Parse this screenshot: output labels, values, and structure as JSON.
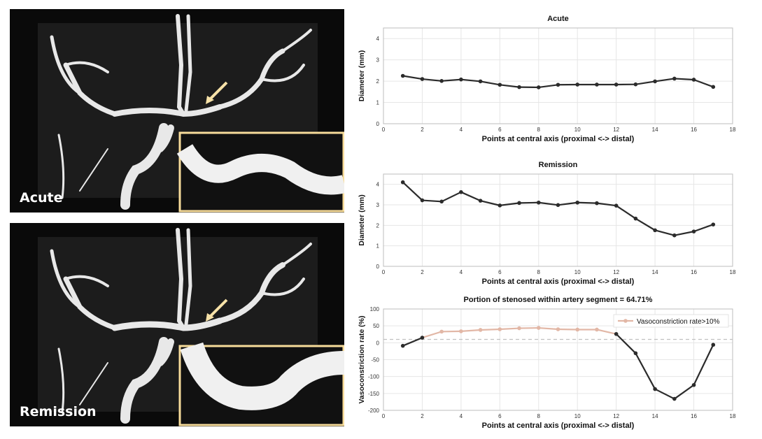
{
  "images": {
    "top": {
      "label": "Acute"
    },
    "bottom": {
      "label": "Remission"
    }
  },
  "colors": {
    "line": "#2b2b2b",
    "highlight": "#e2b7a6",
    "inset_border": "#f7dc9a",
    "arrow": "#f7e2a8",
    "grid": "#e6e6e6",
    "dashed": "#c0c0c0"
  },
  "chart_data": [
    {
      "type": "line",
      "title": "Acute",
      "xlabel": "Points at central axis (proximal <-> distal)",
      "ylabel": "Diameter (mm)",
      "xlim": [
        0,
        18
      ],
      "ylim": [
        0,
        4.5
      ],
      "xticks": [
        0,
        2,
        4,
        6,
        8,
        10,
        12,
        14,
        16,
        18
      ],
      "yticks": [
        0,
        1,
        2,
        3,
        4
      ],
      "grid": true,
      "x": [
        1,
        2,
        3,
        4,
        5,
        6,
        7,
        8,
        9,
        10,
        11,
        12,
        13,
        14,
        15,
        16,
        17
      ],
      "series": [
        {
          "values": [
            2.25,
            2.1,
            2.01,
            2.08,
            1.99,
            1.83,
            1.72,
            1.71,
            1.83,
            1.84,
            1.84,
            1.84,
            1.85,
            1.99,
            2.12,
            2.07,
            1.73
          ]
        }
      ]
    },
    {
      "type": "line",
      "title": "Remission",
      "xlabel": "Points at central axis (proximal <-> distal)",
      "ylabel": "Diameter (mm)",
      "xlim": [
        0,
        18
      ],
      "ylim": [
        0,
        4.5
      ],
      "xticks": [
        0,
        2,
        4,
        6,
        8,
        10,
        12,
        14,
        16,
        18
      ],
      "yticks": [
        0,
        1,
        2,
        3,
        4
      ],
      "grid": true,
      "x": [
        1,
        2,
        3,
        4,
        5,
        6,
        7,
        8,
        9,
        10,
        11,
        12,
        13,
        14,
        15,
        16,
        17
      ],
      "series": [
        {
          "values": [
            4.1,
            3.22,
            3.16,
            3.62,
            3.2,
            2.97,
            3.09,
            3.11,
            2.99,
            3.11,
            3.08,
            2.96,
            2.33,
            1.76,
            1.51,
            1.7,
            2.04
          ]
        }
      ]
    },
    {
      "type": "line",
      "title": "Portion of stenosed within artery segment = 64.71%",
      "xlabel": "Points at central axis (proximal <-> distal)",
      "ylabel": "Vasoconstriction rate (%)",
      "xlim": [
        0,
        18
      ],
      "ylim": [
        -200,
        100
      ],
      "xticks": [
        0,
        2,
        4,
        6,
        8,
        10,
        12,
        14,
        16,
        18
      ],
      "yticks": [
        100,
        50,
        0,
        -50,
        -100,
        -150,
        -200
      ],
      "grid": true,
      "reference_line": 10,
      "legend": {
        "position": "top-right",
        "entries": [
          "Vasoconstriction rate>10%"
        ]
      },
      "x": [
        1,
        2,
        3,
        4,
        5,
        6,
        7,
        8,
        9,
        10,
        11,
        12,
        13,
        14,
        15,
        16,
        17
      ],
      "series": [
        {
          "name": "Vasoconstriction rate>10%",
          "values": [
            -9,
            15,
            33,
            34,
            38,
            40,
            43,
            44,
            40,
            39,
            39,
            26,
            -31,
            -137,
            -166,
            -125,
            -6
          ]
        }
      ],
      "highlight_range": [
        2,
        12
      ]
    }
  ]
}
